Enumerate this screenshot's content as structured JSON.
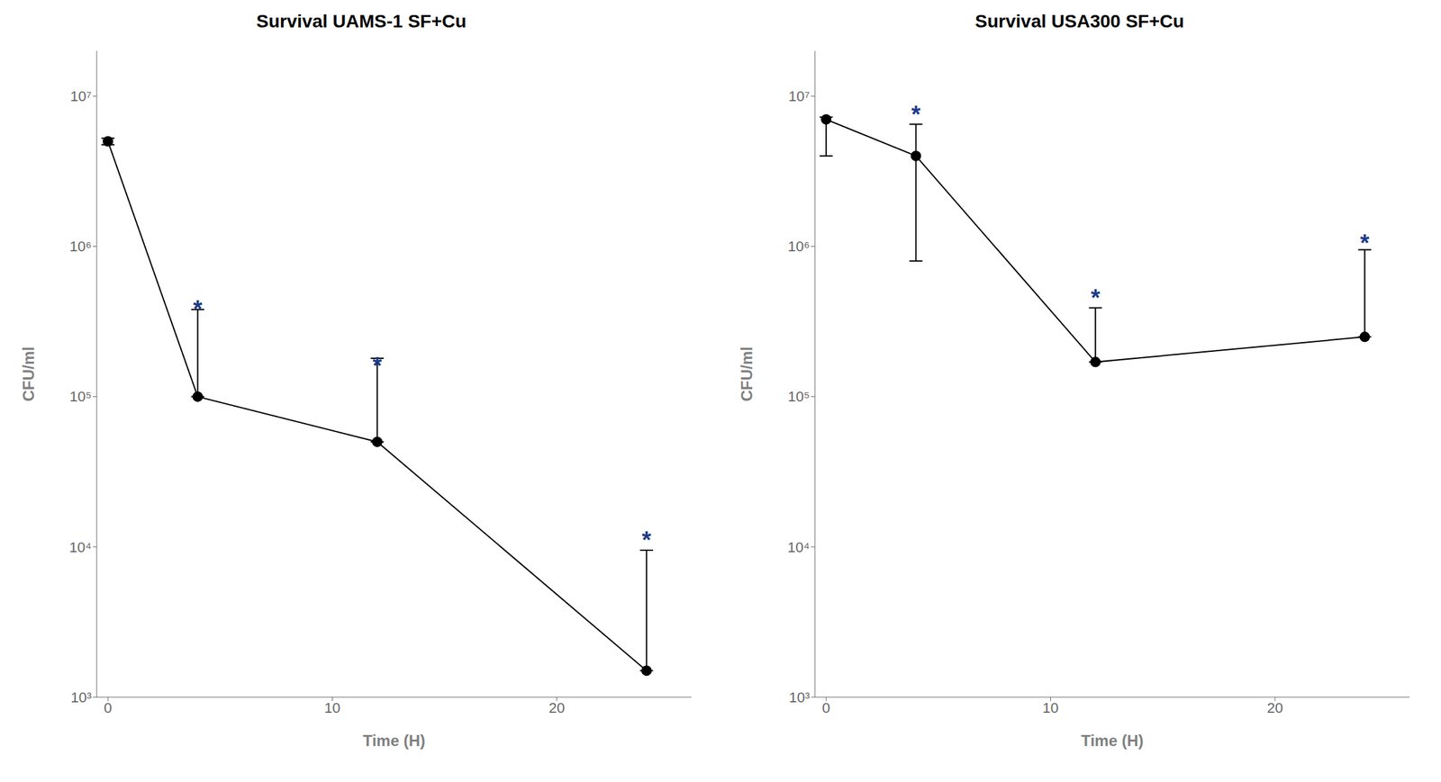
{
  "chart_data": [
    {
      "type": "line",
      "title": "Survival UAMS-1 SF+Cu",
      "x_label": "Time (H)",
      "y_label": "CFU/ml",
      "log": "y",
      "color": "#000000",
      "marker": "circle",
      "x": [
        0,
        4,
        12,
        24
      ],
      "values": [
        5000000,
        100000,
        50000,
        1500
      ],
      "error_upper": [
        250000,
        280000,
        130000,
        8000
      ],
      "error_lower": [
        250000,
        0,
        0,
        0
      ],
      "annotations": [
        {
          "x": 4,
          "y": 380000,
          "text": "*",
          "color": "#1a3a8a"
        },
        {
          "x": 12,
          "y": 160000,
          "text": "*",
          "color": "#1a3a8a"
        },
        {
          "x": 24,
          "y": 11000,
          "text": "*",
          "color": "#1a3a8a"
        }
      ],
      "xlim": [
        -0.5,
        26
      ],
      "ylim": [
        1000,
        20000000
      ],
      "xticks": [
        0,
        10,
        20
      ],
      "yticks": [
        {
          "value": 1000,
          "label": "10³"
        },
        {
          "value": 10000,
          "label": "10⁴"
        },
        {
          "value": 100000,
          "label": "10⁵"
        },
        {
          "value": 1000000,
          "label": "10⁶"
        },
        {
          "value": 10000000,
          "label": "10⁷"
        }
      ]
    },
    {
      "type": "line",
      "title": "Survival USA300 SF+Cu",
      "x_label": "Time (H)",
      "y_label": "CFU/ml",
      "log": "y",
      "color": "#000000",
      "marker": "circle",
      "x": [
        0,
        4,
        12,
        24
      ],
      "values": [
        7000000,
        4000000,
        170000,
        250000
      ],
      "error_upper": [
        250000,
        2500000,
        220000,
        700000
      ],
      "error_lower": [
        3000000,
        3200000,
        0,
        0
      ],
      "annotations": [
        {
          "x": 4,
          "y": 7500000,
          "text": "*",
          "color": "#1a3a8a"
        },
        {
          "x": 12,
          "y": 450000,
          "text": "*",
          "color": "#1a3a8a"
        },
        {
          "x": 24,
          "y": 1050000,
          "text": "*",
          "color": "#1a3a8a"
        }
      ],
      "xlim": [
        -0.5,
        26
      ],
      "ylim": [
        1000,
        20000000
      ],
      "xticks": [
        0,
        10,
        20
      ],
      "yticks": [
        {
          "value": 1000,
          "label": "10³"
        },
        {
          "value": 10000,
          "label": "10⁴"
        },
        {
          "value": 100000,
          "label": "10⁵"
        },
        {
          "value": 1000000,
          "label": "10⁶"
        },
        {
          "value": 10000000,
          "label": "10⁷"
        }
      ]
    }
  ]
}
